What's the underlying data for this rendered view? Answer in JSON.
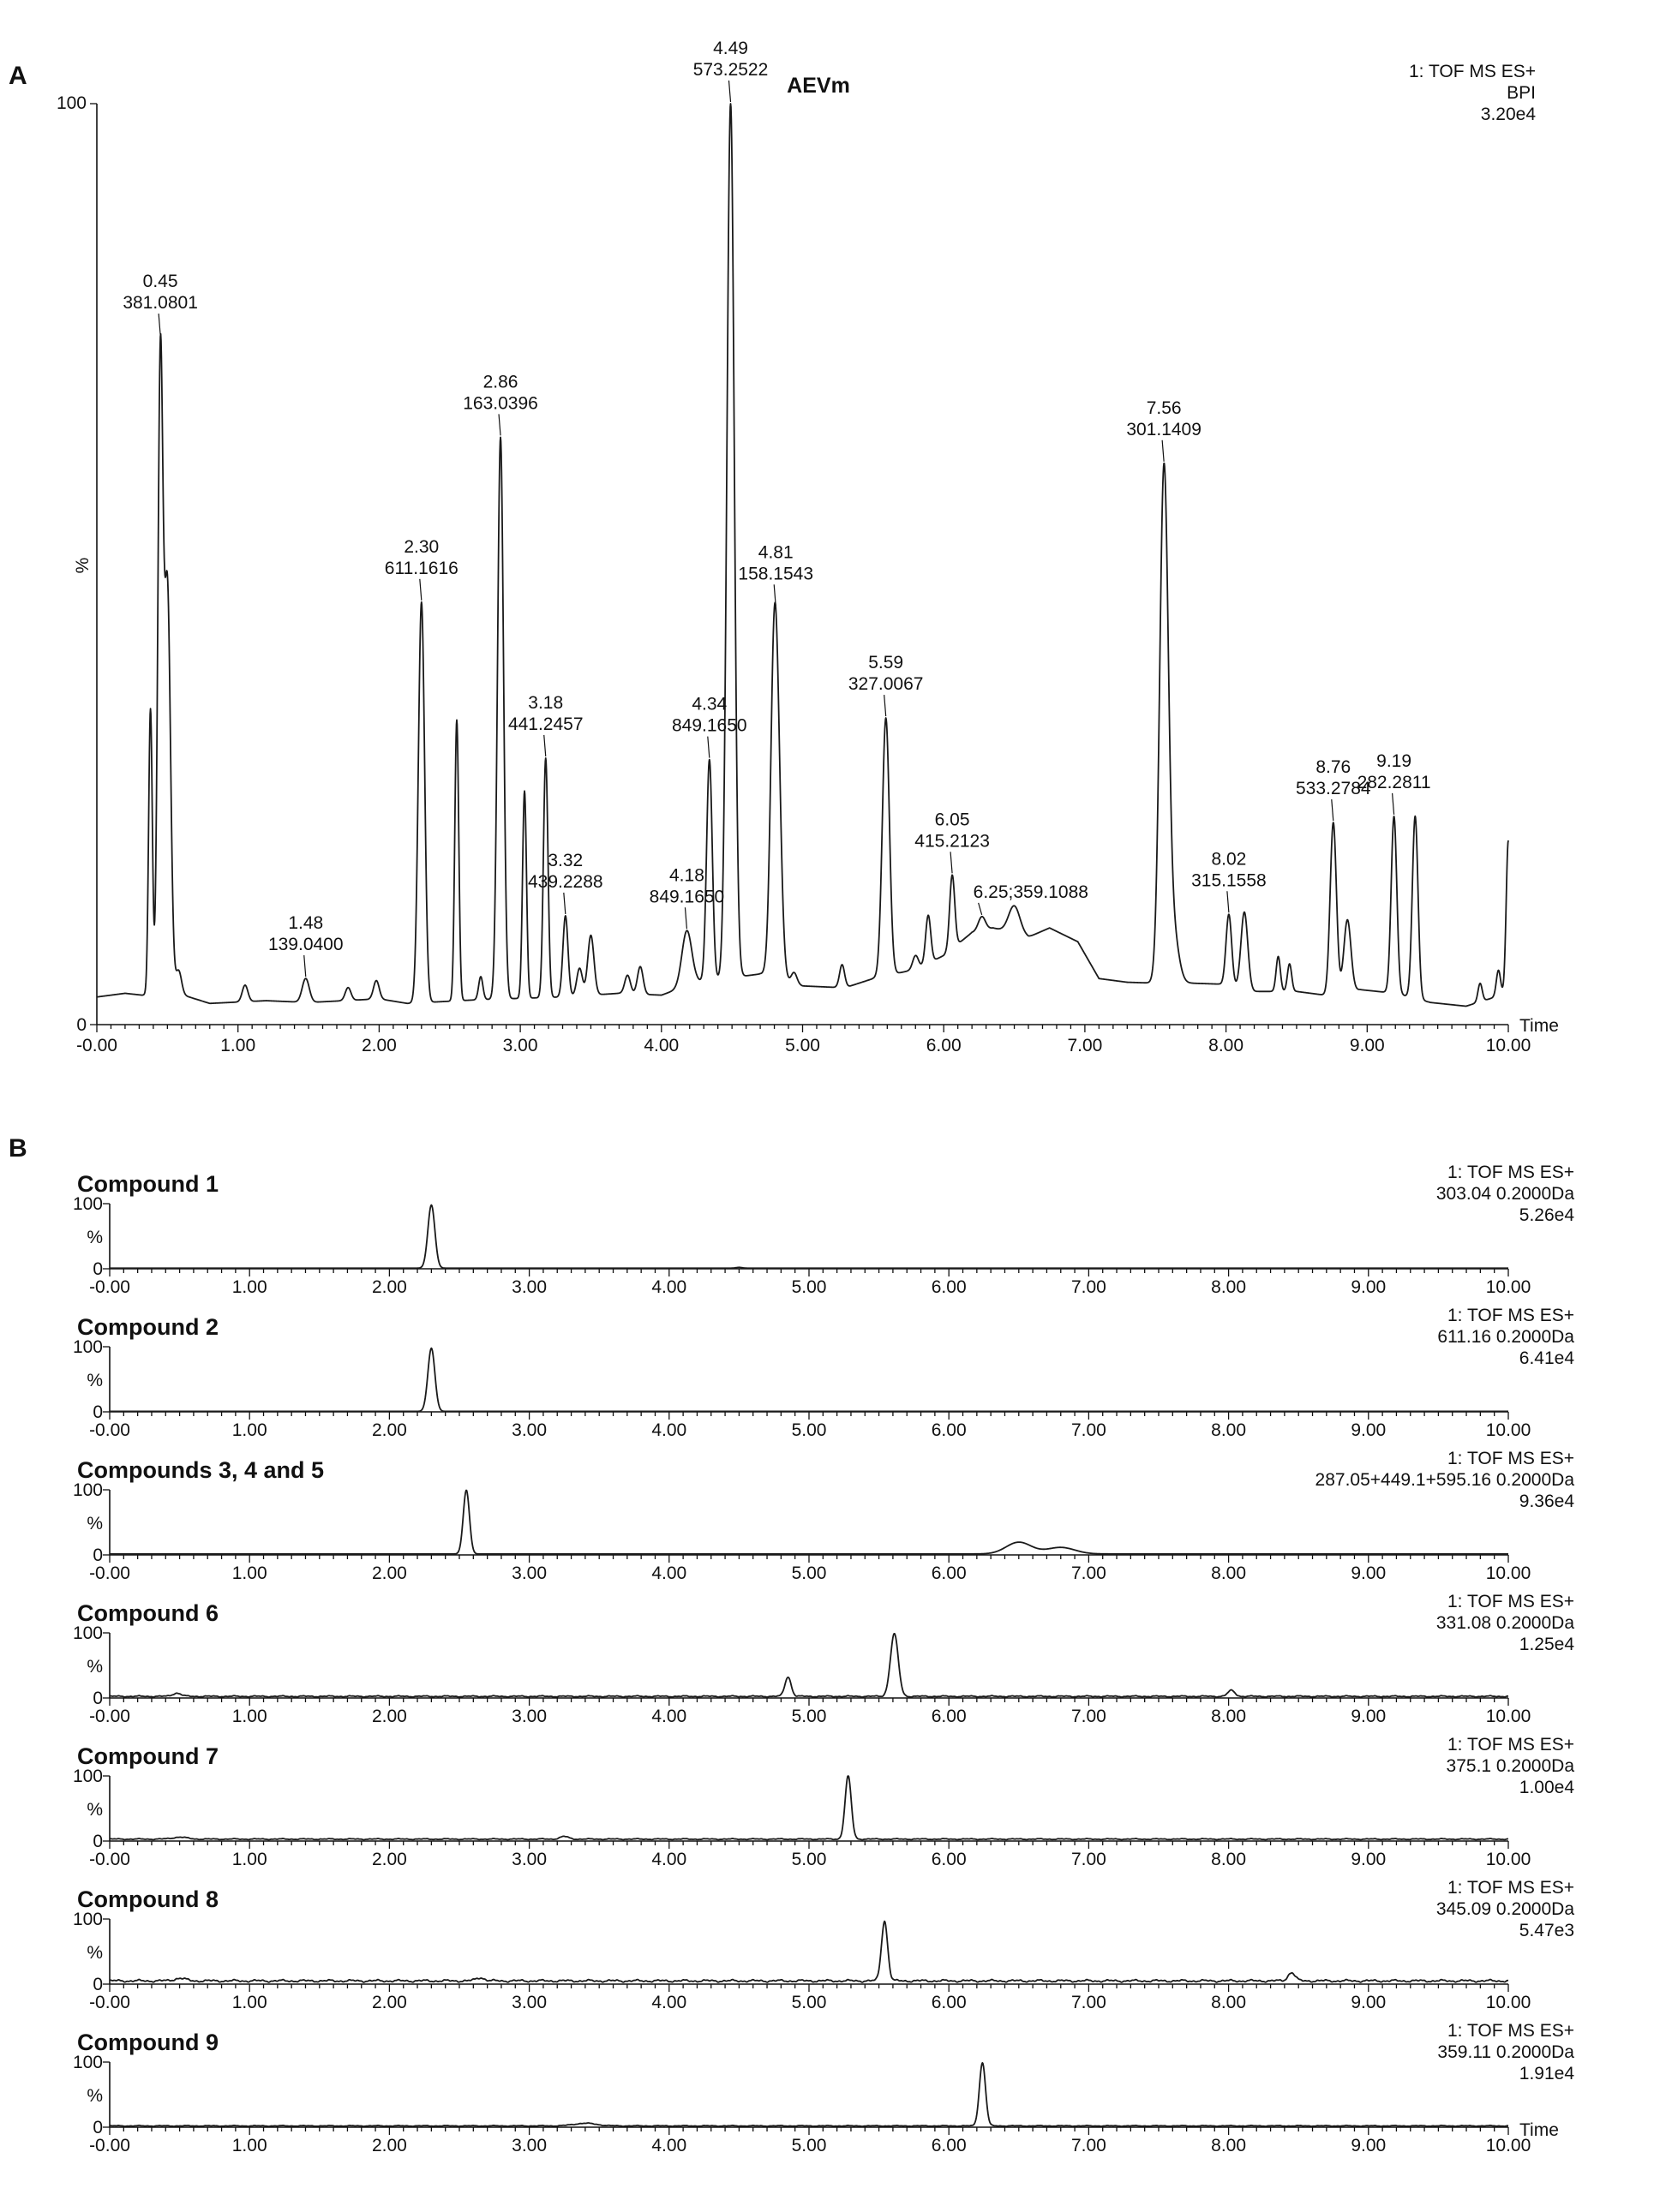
{
  "chart_data": [
    {
      "type": "line",
      "panel_label": "A",
      "title": "AEVm",
      "header": [
        "1: TOF MS ES+",
        "BPI",
        "3.20e4"
      ],
      "xlabel": "Time",
      "ylabel": "%",
      "xlim": [
        0,
        10
      ],
      "ylim": [
        0,
        100
      ],
      "x_ticks": [
        "-0.00",
        "1.00",
        "2.00",
        "3.00",
        "4.00",
        "5.00",
        "6.00",
        "7.00",
        "8.00",
        "9.00",
        "10.00"
      ],
      "y_ticks": [
        "0",
        "100"
      ],
      "baseline": [
        [
          0,
          3
        ],
        [
          0.2,
          3.4
        ],
        [
          0.32,
          3.2
        ],
        [
          0.55,
          3.5
        ],
        [
          0.8,
          2.3
        ],
        [
          1.2,
          2.6
        ],
        [
          1.5,
          2.4
        ],
        [
          2.0,
          2.8
        ],
        [
          2.2,
          2.3
        ],
        [
          2.7,
          2.7
        ],
        [
          3.3,
          3.0
        ],
        [
          3.7,
          3.4
        ],
        [
          4.0,
          3.2
        ],
        [
          4.25,
          4.6
        ],
        [
          4.7,
          5.5
        ],
        [
          5.0,
          4.2
        ],
        [
          5.3,
          4.0
        ],
        [
          5.5,
          5.0
        ],
        [
          5.8,
          6.0
        ],
        [
          6.0,
          7.5
        ],
        [
          6.2,
          10
        ],
        [
          6.35,
          10.5
        ],
        [
          6.6,
          9.5
        ],
        [
          6.75,
          10.5
        ],
        [
          6.95,
          9.0
        ],
        [
          7.1,
          5.0
        ],
        [
          7.3,
          4.6
        ],
        [
          7.5,
          4.5
        ],
        [
          7.75,
          4.5
        ],
        [
          7.95,
          4.4
        ],
        [
          8.2,
          3.6
        ],
        [
          8.5,
          3.6
        ],
        [
          8.7,
          3.2
        ],
        [
          8.95,
          3.8
        ],
        [
          9.2,
          3.4
        ],
        [
          9.45,
          2.4
        ],
        [
          9.7,
          2.0
        ],
        [
          9.95,
          3.2
        ],
        [
          10.0,
          3.5
        ]
      ],
      "peaks": [
        {
          "t": 0.38,
          "h": 31,
          "w": 0.013
        },
        {
          "t": 0.45,
          "h": 68,
          "w": 0.018
        },
        {
          "t": 0.5,
          "h": 44,
          "w": 0.022
        },
        {
          "t": 0.58,
          "h": 2.5,
          "w": 0.02
        },
        {
          "t": 1.05,
          "h": 1.8,
          "w": 0.02
        },
        {
          "t": 1.48,
          "h": 2.6,
          "w": 0.025
        },
        {
          "t": 1.78,
          "h": 1.4,
          "w": 0.02
        },
        {
          "t": 1.98,
          "h": 2.0,
          "w": 0.02
        },
        {
          "t": 2.3,
          "h": 43.5,
          "w": 0.022
        },
        {
          "t": 2.55,
          "h": 30.5,
          "w": 0.014
        },
        {
          "t": 2.72,
          "h": 2.5,
          "w": 0.015
        },
        {
          "t": 2.86,
          "h": 61,
          "w": 0.021
        },
        {
          "t": 3.03,
          "h": 22.5,
          "w": 0.014
        },
        {
          "t": 3.18,
          "h": 26,
          "w": 0.016
        },
        {
          "t": 3.32,
          "h": 8.8,
          "w": 0.018
        },
        {
          "t": 3.42,
          "h": 3.0,
          "w": 0.02
        },
        {
          "t": 3.5,
          "h": 6.5,
          "w": 0.022
        },
        {
          "t": 3.76,
          "h": 2.0,
          "w": 0.02
        },
        {
          "t": 3.85,
          "h": 3.0,
          "w": 0.02
        },
        {
          "t": 4.18,
          "h": 6.0,
          "w": 0.035
        },
        {
          "t": 4.34,
          "h": 24,
          "w": 0.02
        },
        {
          "t": 4.49,
          "h": 95,
          "w": 0.026
        },
        {
          "t": 4.79,
          "h": 7.0,
          "w": 0.02
        },
        {
          "t": 4.81,
          "h": 36,
          "w": 0.03
        },
        {
          "t": 4.94,
          "h": 1.2,
          "w": 0.02
        },
        {
          "t": 5.28,
          "h": 2.5,
          "w": 0.018
        },
        {
          "t": 5.59,
          "h": 28,
          "w": 0.025
        },
        {
          "t": 5.8,
          "h": 1.5,
          "w": 0.02
        },
        {
          "t": 5.89,
          "h": 5.2,
          "w": 0.018
        },
        {
          "t": 6.06,
          "h": 8.0,
          "w": 0.018
        },
        {
          "t": 6.27,
          "h": 1.5,
          "w": 0.025
        },
        {
          "t": 6.5,
          "h": 3.0,
          "w": 0.04
        },
        {
          "t": 7.56,
          "h": 54.5,
          "w": 0.03
        },
        {
          "t": 7.62,
          "h": 6.0,
          "w": 0.04
        },
        {
          "t": 8.02,
          "h": 7.8,
          "w": 0.02
        },
        {
          "t": 8.13,
          "h": 8.4,
          "w": 0.024
        },
        {
          "t": 8.37,
          "h": 3.8,
          "w": 0.015
        },
        {
          "t": 8.45,
          "h": 3.0,
          "w": 0.015
        },
        {
          "t": 8.76,
          "h": 18.6,
          "w": 0.022
        },
        {
          "t": 8.86,
          "h": 7.8,
          "w": 0.025
        },
        {
          "t": 9.19,
          "h": 19.2,
          "w": 0.02
        },
        {
          "t": 9.34,
          "h": 19.8,
          "w": 0.02
        },
        {
          "t": 9.8,
          "h": 2.0,
          "w": 0.015
        },
        {
          "t": 9.93,
          "h": 2.8,
          "w": 0.015
        },
        {
          "t": 10.0,
          "h": 16.5,
          "w": 0.015
        }
      ],
      "annotations": [
        {
          "rt": "0.45",
          "mz": "381.0801",
          "at": 0.45
        },
        {
          "rt": "1.48",
          "mz": "139.0400",
          "at": 1.48
        },
        {
          "rt": "2.30",
          "mz": "611.1616",
          "at": 2.3
        },
        {
          "rt": "2.86",
          "mz": "163.0396",
          "at": 2.86
        },
        {
          "rt": "3.18",
          "mz": "441.2457",
          "at": 3.18
        },
        {
          "rt": "3.32",
          "mz": "439.2288",
          "at": 3.32
        },
        {
          "rt": "4.18",
          "mz": "849.1650",
          "at": 4.18
        },
        {
          "rt": "4.34",
          "mz": "849.1650",
          "at": 4.34
        },
        {
          "rt": "4.49",
          "mz": "573.2522",
          "at": 4.49
        },
        {
          "rt": "4.81",
          "mz": "158.1543",
          "at": 4.81
        },
        {
          "rt": "5.59",
          "mz": "327.0067",
          "at": 5.59
        },
        {
          "rt": "6.05",
          "mz": "415.2123",
          "at": 6.06
        },
        {
          "rt": "6.25",
          "mz": "359.1088",
          "at": 6.27,
          "inline": true
        },
        {
          "rt": "7.56",
          "mz": "301.1409",
          "at": 7.56
        },
        {
          "rt": "8.02",
          "mz": "315.1558",
          "at": 8.02
        },
        {
          "rt": "8.76",
          "mz": "533.2784",
          "at": 8.76
        },
        {
          "rt": "9.19",
          "mz": "282.2811",
          "at": 9.19
        }
      ]
    },
    {
      "type": "line",
      "panel_label": "B",
      "title": "Compound 1",
      "header": [
        "1: TOF MS ES+",
        "303.04 0.2000Da",
        "5.26e4"
      ],
      "xlim": [
        0,
        10
      ],
      "ylim": [
        0,
        100
      ],
      "y_ticks": [
        "0",
        "%",
        "100"
      ],
      "x_ticks": [
        "-0.00",
        "1.00",
        "2.00",
        "3.00",
        "4.00",
        "5.00",
        "6.00",
        "7.00",
        "8.00",
        "9.00",
        "10.00"
      ],
      "baseline_level": 1.0,
      "peaks": [
        {
          "t": 2.3,
          "h": 97,
          "w": 0.025
        },
        {
          "t": 4.5,
          "h": 1.2,
          "w": 0.02
        }
      ]
    },
    {
      "type": "line",
      "title": "Compound 2",
      "header": [
        "1: TOF MS ES+",
        "611.16 0.2000Da",
        "6.41e4"
      ],
      "xlim": [
        0,
        10
      ],
      "ylim": [
        0,
        100
      ],
      "y_ticks": [
        "0",
        "%",
        "100"
      ],
      "x_ticks": [
        "-0.00",
        "1.00",
        "2.00",
        "3.00",
        "4.00",
        "5.00",
        "6.00",
        "7.00",
        "8.00",
        "9.00",
        "10.00"
      ],
      "baseline_level": 0.8,
      "peaks": [
        {
          "t": 2.3,
          "h": 97,
          "w": 0.025
        }
      ]
    },
    {
      "type": "line",
      "title": "Compounds 3, 4 and 5",
      "header": [
        "1: TOF MS ES+",
        "287.05+449.1+595.16 0.2000Da",
        "9.36e4"
      ],
      "xlim": [
        0,
        10
      ],
      "ylim": [
        0,
        100
      ],
      "y_ticks": [
        "0",
        "%",
        "100"
      ],
      "x_ticks": [
        "-0.00",
        "1.00",
        "2.00",
        "3.00",
        "4.00",
        "5.00",
        "6.00",
        "7.00",
        "8.00",
        "9.00",
        "10.00"
      ],
      "baseline_level": 1.5,
      "peaks": [
        {
          "t": 2.55,
          "h": 98,
          "w": 0.022
        },
        {
          "t": 6.5,
          "h": 18,
          "w": 0.09
        },
        {
          "t": 6.8,
          "h": 10,
          "w": 0.1
        }
      ]
    },
    {
      "type": "line",
      "title": "Compound 6",
      "header": [
        "1: TOF MS ES+",
        "331.08 0.2000Da",
        "1.25e4"
      ],
      "xlim": [
        0,
        10
      ],
      "ylim": [
        0,
        100
      ],
      "y_ticks": [
        "0",
        "%",
        "100"
      ],
      "x_ticks": [
        "-0.00",
        "1.00",
        "2.00",
        "3.00",
        "4.00",
        "5.00",
        "6.00",
        "7.00",
        "8.00",
        "9.00",
        "10.00"
      ],
      "baseline_level": 2.5,
      "noise": 1.2,
      "peaks": [
        {
          "t": 0.48,
          "h": 5,
          "w": 0.03
        },
        {
          "t": 4.85,
          "h": 30,
          "w": 0.022
        },
        {
          "t": 5.61,
          "h": 96,
          "w": 0.028
        },
        {
          "t": 8.02,
          "h": 9,
          "w": 0.025
        }
      ]
    },
    {
      "type": "line",
      "title": "Compound 7",
      "header": [
        "1: TOF MS ES+",
        "375.1 0.2000Da",
        "1.00e4"
      ],
      "xlim": [
        0,
        10
      ],
      "ylim": [
        0,
        100
      ],
      "y_ticks": [
        "0",
        "%",
        "100"
      ],
      "x_ticks": [
        "-0.00",
        "1.00",
        "2.00",
        "3.00",
        "4.00",
        "5.00",
        "6.00",
        "7.00",
        "8.00",
        "9.00",
        "10.00"
      ],
      "baseline_level": 3.0,
      "noise": 1.0,
      "peaks": [
        {
          "t": 0.5,
          "h": 3,
          "w": 0.05
        },
        {
          "t": 3.25,
          "h": 4,
          "w": 0.03
        },
        {
          "t": 5.28,
          "h": 97,
          "w": 0.022
        }
      ]
    },
    {
      "type": "line",
      "title": "Compound 8",
      "header": [
        "1: TOF MS ES+",
        "345.09 0.2000Da",
        "5.47e3"
      ],
      "xlim": [
        0,
        10
      ],
      "ylim": [
        0,
        100
      ],
      "y_ticks": [
        "0",
        "%",
        "100"
      ],
      "x_ticks": [
        "-0.00",
        "1.00",
        "2.00",
        "3.00",
        "4.00",
        "5.00",
        "6.00",
        "7.00",
        "8.00",
        "9.00",
        "10.00"
      ],
      "baseline_level": 5.0,
      "noise": 2.2,
      "peaks": [
        {
          "t": 0.5,
          "h": 4,
          "w": 0.04
        },
        {
          "t": 2.65,
          "h": 5,
          "w": 0.03
        },
        {
          "t": 5.54,
          "h": 92,
          "w": 0.022
        },
        {
          "t": 8.45,
          "h": 13,
          "w": 0.025
        }
      ]
    },
    {
      "type": "line",
      "title": "Compound 9",
      "header": [
        "1: TOF MS ES+",
        "359.11 0.2000Da",
        "1.91e4"
      ],
      "xlabel": "Time",
      "xlim": [
        0,
        10
      ],
      "ylim": [
        0,
        100
      ],
      "y_ticks": [
        "0",
        "%",
        "100"
      ],
      "x_ticks": [
        "-0.00",
        "1.00",
        "2.00",
        "3.00",
        "4.00",
        "5.00",
        "6.00",
        "7.00",
        "8.00",
        "9.00",
        "10.00"
      ],
      "baseline_level": 2.0,
      "noise": 0.8,
      "peaks": [
        {
          "t": 3.4,
          "h": 4,
          "w": 0.08
        },
        {
          "t": 6.24,
          "h": 97,
          "w": 0.022
        }
      ]
    }
  ]
}
